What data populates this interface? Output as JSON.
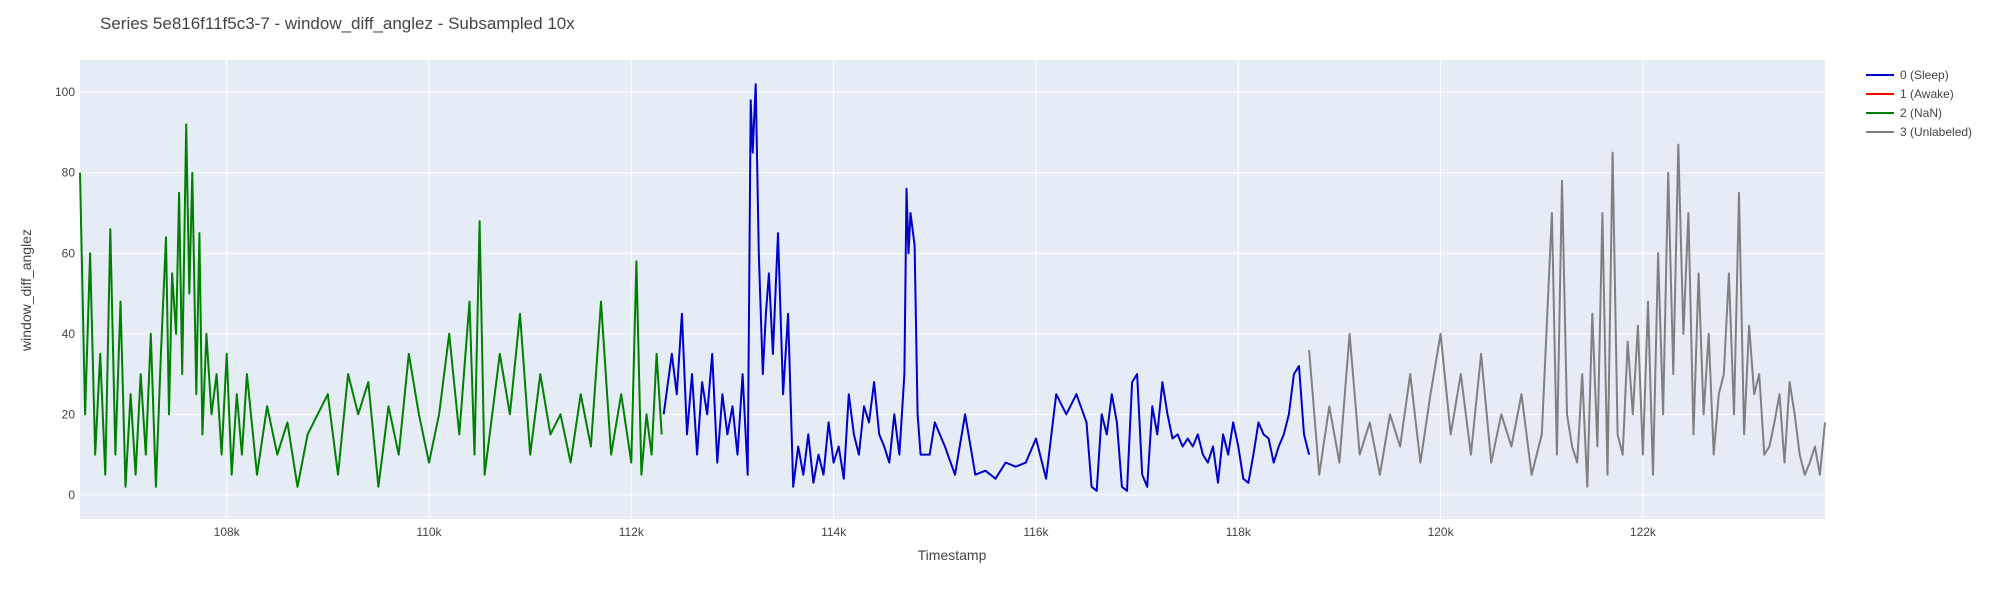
{
  "chart_data": {
    "type": "line",
    "title": "Series 5e816f11f5c3-7 - window_diff_anglez - Subsampled 10x",
    "xlabel": "Timestamp",
    "ylabel": "window_diff_anglez",
    "xlim": [
      106550,
      123800
    ],
    "ylim": [
      -6,
      108
    ],
    "grid": true,
    "legend_position": "top-right",
    "x_ticks": [
      {
        "value": 108000,
        "label": "108k"
      },
      {
        "value": 110000,
        "label": "110k"
      },
      {
        "value": 112000,
        "label": "112k"
      },
      {
        "value": 114000,
        "label": "114k"
      },
      {
        "value": 116000,
        "label": "116k"
      },
      {
        "value": 118000,
        "label": "118k"
      },
      {
        "value": 120000,
        "label": "120k"
      },
      {
        "value": 122000,
        "label": "122k"
      }
    ],
    "y_ticks": [
      {
        "value": 0,
        "label": "0"
      },
      {
        "value": 20,
        "label": "20"
      },
      {
        "value": 40,
        "label": "40"
      },
      {
        "value": 60,
        "label": "60"
      },
      {
        "value": 80,
        "label": "80"
      },
      {
        "value": 100,
        "label": "100"
      }
    ],
    "series": [
      {
        "name": "0 (Sleep)",
        "color": "#0000cc",
        "x": [
          112320,
          112400,
          112450,
          112500,
          112550,
          112600,
          112650,
          112700,
          112750,
          112800,
          112850,
          112900,
          112950,
          113000,
          113050,
          113100,
          113150,
          113180,
          113200,
          113230,
          113260,
          113300,
          113330,
          113360,
          113400,
          113450,
          113500,
          113550,
          113600,
          113650,
          113700,
          113750,
          113800,
          113850,
          113900,
          113950,
          114000,
          114050,
          114100,
          114150,
          114200,
          114250,
          114300,
          114350,
          114400,
          114450,
          114500,
          114550,
          114600,
          114650,
          114700,
          114720,
          114740,
          114760,
          114800,
          114830,
          114860,
          114900,
          114950,
          115000,
          115100,
          115200,
          115300,
          115400,
          115500,
          115600,
          115700,
          115800,
          115900,
          116000,
          116100,
          116200,
          116300,
          116400,
          116500,
          116550,
          116600,
          116650,
          116700,
          116750,
          116800,
          116850,
          116900,
          116950,
          117000,
          117050,
          117100,
          117150,
          117200,
          117250,
          117300,
          117350,
          117400,
          117450,
          117500,
          117550,
          117600,
          117650,
          117700,
          117750,
          117800,
          117850,
          117900,
          117950,
          118000,
          118050,
          118100,
          118150,
          118200,
          118250,
          118300,
          118350,
          118400,
          118450,
          118500,
          118550,
          118600,
          118650,
          118700
        ],
        "y": [
          20,
          35,
          25,
          45,
          15,
          30,
          10,
          28,
          20,
          35,
          8,
          25,
          15,
          22,
          10,
          30,
          5,
          98,
          85,
          102,
          60,
          30,
          45,
          55,
          35,
          65,
          25,
          45,
          2,
          12,
          5,
          15,
          3,
          10,
          5,
          18,
          8,
          12,
          4,
          25,
          15,
          10,
          22,
          18,
          28,
          15,
          12,
          8,
          20,
          10,
          30,
          76,
          60,
          70,
          62,
          20,
          10,
          10,
          10,
          18,
          12,
          5,
          20,
          5,
          6,
          4,
          8,
          7,
          8,
          14,
          4,
          25,
          20,
          25,
          18,
          2,
          1,
          20,
          15,
          25,
          18,
          2,
          1,
          28,
          30,
          5,
          2,
          22,
          15,
          28,
          20,
          14,
          15,
          12,
          14,
          12,
          15,
          10,
          8,
          12,
          3,
          15,
          10,
          18,
          12,
          4,
          3,
          10,
          18,
          15,
          14,
          8,
          12,
          15,
          20,
          30,
          32,
          15,
          10
        ]
      },
      {
        "name": "1 (Awake)",
        "color": "#ff0000",
        "x": [],
        "y": []
      },
      {
        "name": "2 (NaN)",
        "color": "#008000",
        "x": [
          106550,
          106600,
          106650,
          106700,
          106750,
          106800,
          106850,
          106900,
          106950,
          107000,
          107050,
          107100,
          107150,
          107200,
          107250,
          107300,
          107350,
          107400,
          107430,
          107460,
          107500,
          107530,
          107560,
          107600,
          107630,
          107660,
          107700,
          107730,
          107760,
          107800,
          107850,
          107900,
          107950,
          108000,
          108050,
          108100,
          108150,
          108200,
          108300,
          108400,
          108500,
          108600,
          108700,
          108800,
          108900,
          109000,
          109100,
          109200,
          109300,
          109400,
          109500,
          109600,
          109700,
          109800,
          109900,
          110000,
          110100,
          110200,
          110300,
          110400,
          110450,
          110500,
          110550,
          110600,
          110700,
          110800,
          110900,
          111000,
          111100,
          111200,
          111300,
          111400,
          111500,
          111600,
          111700,
          111800,
          111900,
          112000,
          112050,
          112100,
          112150,
          112200,
          112250,
          112300
        ],
        "y": [
          80,
          20,
          60,
          10,
          35,
          5,
          66,
          10,
          48,
          2,
          25,
          5,
          30,
          10,
          40,
          2,
          35,
          64,
          20,
          55,
          40,
          75,
          30,
          92,
          50,
          80,
          25,
          65,
          15,
          40,
          20,
          30,
          10,
          35,
          5,
          25,
          10,
          30,
          5,
          22,
          10,
          18,
          2,
          15,
          20,
          25,
          5,
          30,
          20,
          28,
          2,
          22,
          10,
          35,
          20,
          8,
          20,
          40,
          15,
          48,
          10,
          68,
          5,
          15,
          35,
          20,
          45,
          10,
          30,
          15,
          20,
          8,
          25,
          12,
          48,
          10,
          25,
          8,
          58,
          5,
          20,
          10,
          35,
          15
        ]
      },
      {
        "name": "3 (Unlabeled)",
        "color": "#808080",
        "x": [
          118700,
          118800,
          118900,
          119000,
          119100,
          119200,
          119300,
          119400,
          119500,
          119600,
          119700,
          119800,
          119900,
          120000,
          120100,
          120200,
          120300,
          120400,
          120500,
          120600,
          120700,
          120800,
          120900,
          121000,
          121100,
          121150,
          121200,
          121250,
          121300,
          121350,
          121400,
          121450,
          121500,
          121550,
          121600,
          121650,
          121700,
          121750,
          121800,
          121850,
          121900,
          121950,
          122000,
          122050,
          122100,
          122150,
          122200,
          122250,
          122300,
          122350,
          122400,
          122450,
          122500,
          122550,
          122600,
          122650,
          122700,
          122750,
          122800,
          122850,
          122900,
          122950,
          123000,
          123050,
          123100,
          123150,
          123200,
          123250,
          123300,
          123350,
          123400,
          123450,
          123500,
          123550,
          123600,
          123650,
          123700,
          123750,
          123800
        ],
        "y": [
          36,
          5,
          22,
          8,
          40,
          10,
          18,
          5,
          20,
          12,
          30,
          8,
          25,
          40,
          15,
          30,
          10,
          35,
          8,
          20,
          12,
          25,
          5,
          15,
          70,
          10,
          78,
          20,
          12,
          8,
          30,
          2,
          45,
          12,
          70,
          5,
          85,
          15,
          10,
          38,
          20,
          42,
          10,
          48,
          5,
          60,
          20,
          80,
          30,
          87,
          40,
          70,
          15,
          55,
          20,
          40,
          10,
          25,
          30,
          55,
          20,
          75,
          15,
          42,
          25,
          30,
          10,
          12,
          18,
          25,
          8,
          28,
          20,
          10,
          5,
          8,
          12,
          5,
          18
        ]
      }
    ]
  }
}
